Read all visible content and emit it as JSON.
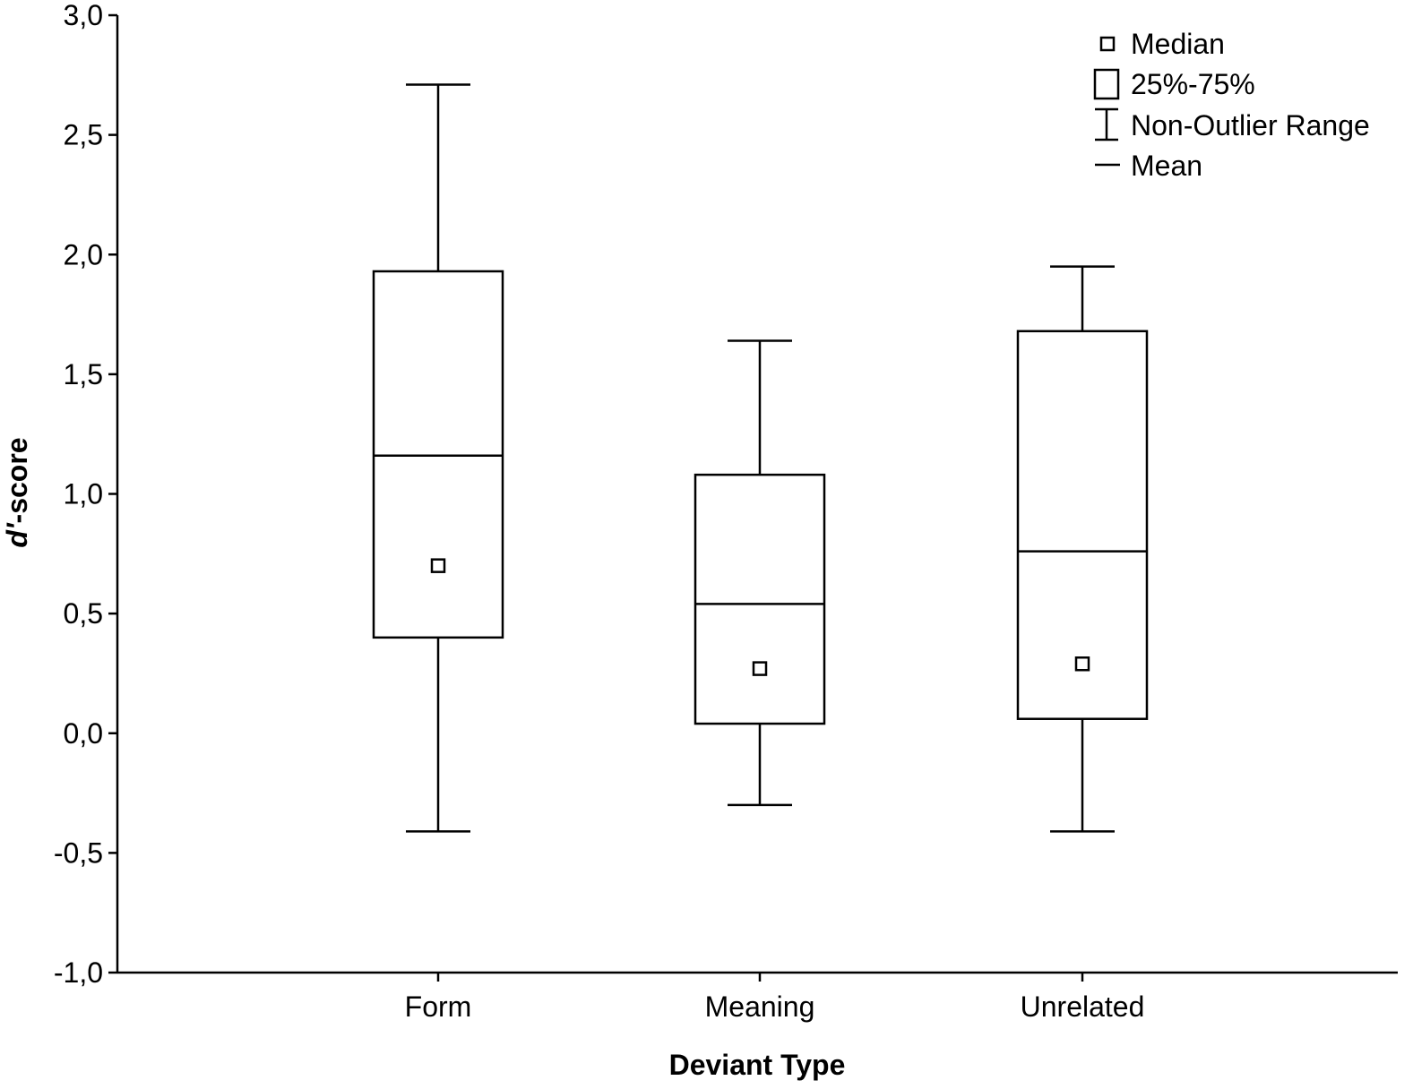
{
  "chart_data": {
    "type": "boxplot",
    "xlabel": "Deviant Type",
    "ylabel_italic": "d'",
    "ylabel_rest": "-score",
    "ylim": [
      -1.0,
      3.0
    ],
    "yticks": [
      {
        "value": -1.0,
        "label": "-1,0"
      },
      {
        "value": -0.5,
        "label": "-0,5"
      },
      {
        "value": 0.0,
        "label": "0,0"
      },
      {
        "value": 0.5,
        "label": "0,5"
      },
      {
        "value": 1.0,
        "label": "1,0"
      },
      {
        "value": 1.5,
        "label": "1,5"
      },
      {
        "value": 2.0,
        "label": "2,0"
      },
      {
        "value": 2.5,
        "label": "2,5"
      },
      {
        "value": 3.0,
        "label": "3,0"
      }
    ],
    "categories": [
      "Form",
      "Meaning",
      "Unrelated"
    ],
    "series": [
      {
        "category": "Form",
        "whisker_low": -0.41,
        "q1": 0.4,
        "mean": 1.16,
        "q3": 1.93,
        "whisker_high": 2.71,
        "median": 0.7
      },
      {
        "category": "Meaning",
        "whisker_low": -0.3,
        "q1": 0.04,
        "mean": 0.54,
        "q3": 1.08,
        "whisker_high": 1.64,
        "median": 0.27
      },
      {
        "category": "Unrelated",
        "whisker_low": -0.41,
        "q1": 0.06,
        "mean": 0.76,
        "q3": 1.68,
        "whisker_high": 1.95,
        "median": 0.29
      }
    ],
    "legend": {
      "position": "top-right",
      "entries": [
        "Median",
        "25%-75%",
        "Non-Outlier Range",
        "Mean"
      ]
    }
  }
}
